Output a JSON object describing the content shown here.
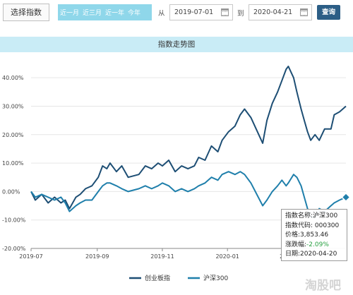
{
  "toolbar": {
    "select_index_label": "选择指数",
    "quick_ranges": [
      "近一月",
      "近三月",
      "近一年",
      "今年"
    ],
    "from_label": "从",
    "start_date": "2019-07-01",
    "to_label": "到",
    "end_date": "2020-04-21",
    "query_label": "查询"
  },
  "chart_title": "指数走势图",
  "colors": {
    "chinext": "#1d4e74",
    "hs300": "#1f7fab",
    "tooltip_change": "#27a040",
    "title_bar": "#c9ecf6",
    "quick_bar": "#8fd7ea"
  },
  "chart_data": {
    "type": "line",
    "x_start": "2019-07-01",
    "x_end": "2020-04-21",
    "x_ticks": [
      "2019-07",
      "2019-09",
      "2019-11",
      "2020-01",
      "2020-03"
    ],
    "y_ticks": [
      "40.00%",
      "30.00%",
      "20.00%",
      "10.00%",
      "0.00%",
      "-10.00%",
      "-20.00%"
    ],
    "ylim": [
      -20,
      45
    ],
    "grid": false,
    "legend_position": "bottom",
    "series": [
      {
        "name": "创业板指",
        "points": [
          [
            "2019-07-01",
            0
          ],
          [
            "2019-07-05",
            -3
          ],
          [
            "2019-07-11",
            -1
          ],
          [
            "2019-07-17",
            -4
          ],
          [
            "2019-07-23",
            -2
          ],
          [
            "2019-07-29",
            -4
          ],
          [
            "2019-08-02",
            -3
          ],
          [
            "2019-08-06",
            -6
          ],
          [
            "2019-08-12",
            -2
          ],
          [
            "2019-08-16",
            -1
          ],
          [
            "2019-08-21",
            1
          ],
          [
            "2019-08-27",
            2
          ],
          [
            "2019-09-02",
            5
          ],
          [
            "2019-09-06",
            9
          ],
          [
            "2019-09-10",
            8
          ],
          [
            "2019-09-13",
            10
          ],
          [
            "2019-09-19",
            7
          ],
          [
            "2019-09-24",
            9
          ],
          [
            "2019-09-30",
            5
          ],
          [
            "2019-10-10",
            6
          ],
          [
            "2019-10-16",
            9
          ],
          [
            "2019-10-22",
            8
          ],
          [
            "2019-10-28",
            10
          ],
          [
            "2019-11-01",
            9
          ],
          [
            "2019-11-07",
            11
          ],
          [
            "2019-11-13",
            7
          ],
          [
            "2019-11-19",
            9
          ],
          [
            "2019-11-25",
            8
          ],
          [
            "2019-12-01",
            9
          ],
          [
            "2019-12-05",
            12
          ],
          [
            "2019-12-11",
            11
          ],
          [
            "2019-12-17",
            16
          ],
          [
            "2019-12-23",
            14
          ],
          [
            "2019-12-27",
            18
          ],
          [
            "2020-01-02",
            21
          ],
          [
            "2020-01-08",
            23
          ],
          [
            "2020-01-13",
            27
          ],
          [
            "2020-01-17",
            29
          ],
          [
            "2020-01-23",
            26
          ],
          [
            "2020-02-03",
            17
          ],
          [
            "2020-02-07",
            25
          ],
          [
            "2020-02-12",
            31
          ],
          [
            "2020-02-17",
            35
          ],
          [
            "2020-02-21",
            39
          ],
          [
            "2020-02-25",
            43
          ],
          [
            "2020-02-27",
            44
          ],
          [
            "2020-03-03",
            40
          ],
          [
            "2020-03-06",
            35
          ],
          [
            "2020-03-10",
            29
          ],
          [
            "2020-03-13",
            25
          ],
          [
            "2020-03-16",
            21
          ],
          [
            "2020-03-19",
            18
          ],
          [
            "2020-03-23",
            20
          ],
          [
            "2020-03-27",
            18
          ],
          [
            "2020-04-01",
            22
          ],
          [
            "2020-04-07",
            22
          ],
          [
            "2020-04-10",
            27
          ],
          [
            "2020-04-15",
            28
          ],
          [
            "2020-04-21",
            30
          ]
        ]
      },
      {
        "name": "沪深300",
        "points": [
          [
            "2019-07-01",
            0
          ],
          [
            "2019-07-05",
            -2
          ],
          [
            "2019-07-11",
            -1
          ],
          [
            "2019-07-17",
            -2
          ],
          [
            "2019-07-23",
            -3
          ],
          [
            "2019-07-29",
            -2
          ],
          [
            "2019-08-02",
            -4
          ],
          [
            "2019-08-06",
            -7
          ],
          [
            "2019-08-12",
            -5
          ],
          [
            "2019-08-16",
            -4
          ],
          [
            "2019-08-21",
            -3
          ],
          [
            "2019-08-27",
            -3
          ],
          [
            "2019-09-02",
            0
          ],
          [
            "2019-09-06",
            2
          ],
          [
            "2019-09-10",
            3
          ],
          [
            "2019-09-13",
            3
          ],
          [
            "2019-09-19",
            2
          ],
          [
            "2019-09-24",
            1
          ],
          [
            "2019-09-30",
            0
          ],
          [
            "2019-10-10",
            1
          ],
          [
            "2019-10-16",
            2
          ],
          [
            "2019-10-22",
            1
          ],
          [
            "2019-10-28",
            2
          ],
          [
            "2019-11-01",
            3
          ],
          [
            "2019-11-07",
            2
          ],
          [
            "2019-11-13",
            0
          ],
          [
            "2019-11-19",
            1
          ],
          [
            "2019-11-25",
            0
          ],
          [
            "2019-12-01",
            1
          ],
          [
            "2019-12-05",
            2
          ],
          [
            "2019-12-11",
            3
          ],
          [
            "2019-12-17",
            5
          ],
          [
            "2019-12-23",
            4
          ],
          [
            "2019-12-27",
            6
          ],
          [
            "2020-01-02",
            7
          ],
          [
            "2020-01-08",
            6
          ],
          [
            "2020-01-13",
            7
          ],
          [
            "2020-01-17",
            6
          ],
          [
            "2020-01-23",
            3
          ],
          [
            "2020-02-03",
            -5
          ],
          [
            "2020-02-07",
            -3
          ],
          [
            "2020-02-12",
            0
          ],
          [
            "2020-02-17",
            2
          ],
          [
            "2020-02-21",
            4
          ],
          [
            "2020-02-25",
            2
          ],
          [
            "2020-02-27",
            3
          ],
          [
            "2020-03-03",
            6
          ],
          [
            "2020-03-06",
            5
          ],
          [
            "2020-03-10",
            2
          ],
          [
            "2020-03-13",
            -2
          ],
          [
            "2020-03-16",
            -6
          ],
          [
            "2020-03-19",
            -9
          ],
          [
            "2020-03-23",
            -9
          ],
          [
            "2020-03-27",
            -6
          ],
          [
            "2020-04-01",
            -7
          ],
          [
            "2020-04-07",
            -5
          ],
          [
            "2020-04-10",
            -4
          ],
          [
            "2020-04-15",
            -3
          ],
          [
            "2020-04-21",
            -2
          ]
        ]
      }
    ],
    "tooltip": {
      "name_line": "指数名称:沪深300",
      "code_line": "指数代码: 000300",
      "price_line": "价格:3,853.46",
      "change_label": "涨跌幅:",
      "change_value": "-2.09%",
      "date_line": "日期:2020-04-20"
    }
  },
  "watermark": "淘股吧"
}
